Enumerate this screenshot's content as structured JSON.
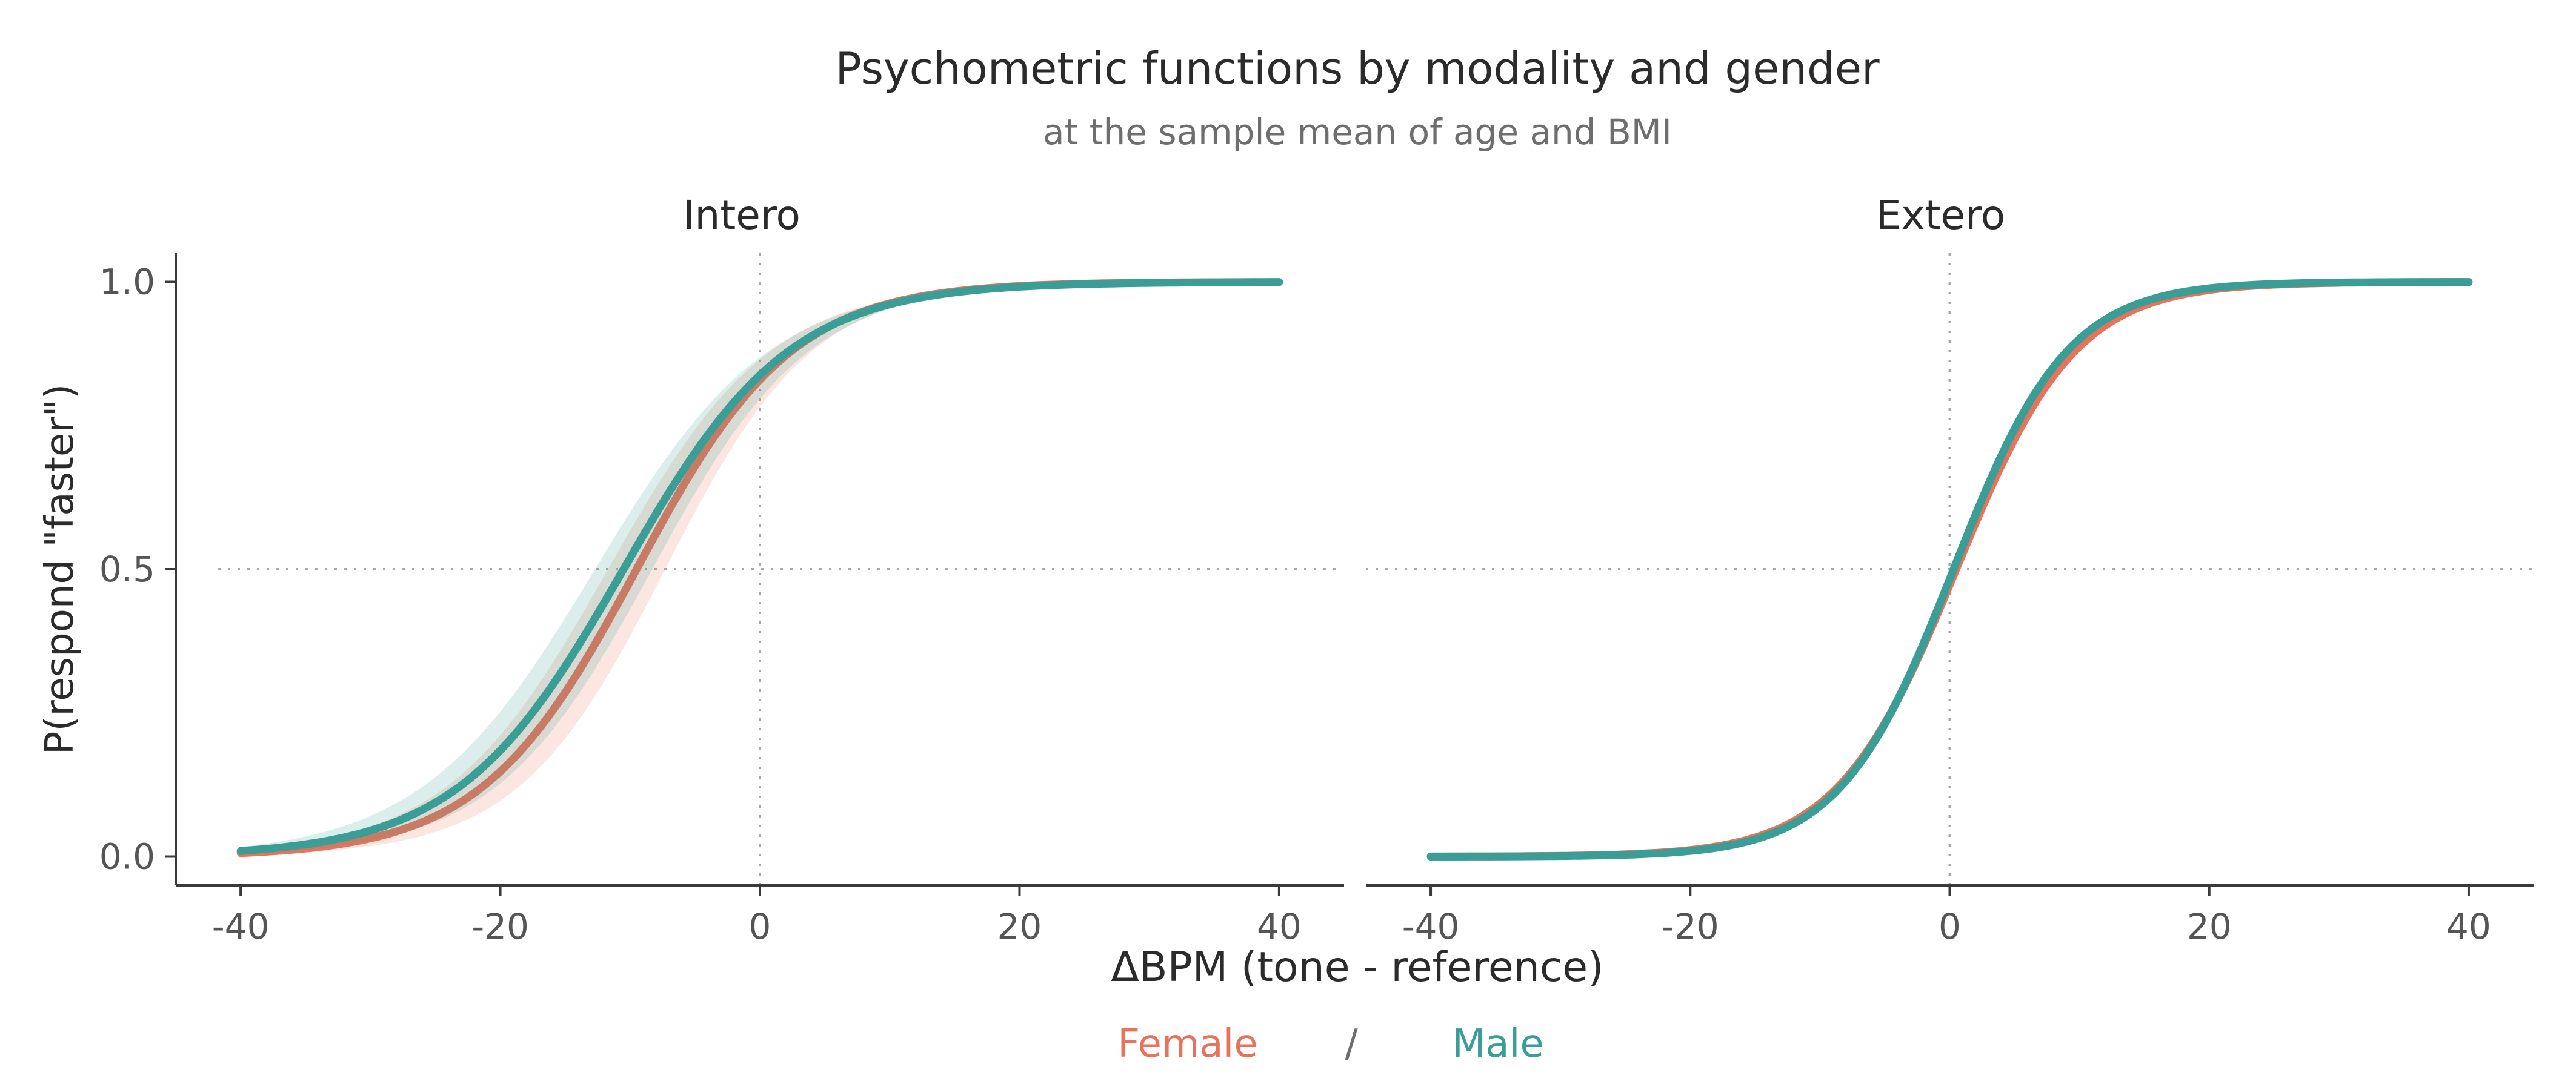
{
  "chart_data": {
    "type": "line",
    "title": "Psychometric functions by modality and gender",
    "subtitle": "at the sample mean of age and BMI",
    "xlabel": "ΔBPM (tone - reference)",
    "ylabel": "P(respond \"faster\")",
    "xlim": [
      -45,
      45
    ],
    "ylim": [
      -0.05,
      1.05
    ],
    "x_ticks": [
      "-40",
      "-20",
      "0",
      "20",
      "40"
    ],
    "y_ticks": [
      "0.0",
      "0.5",
      "1.0"
    ],
    "reference_lines": {
      "x": 0,
      "y": 0.5
    },
    "legend": {
      "placement": "bottom",
      "separator": "/"
    },
    "panels": [
      {
        "name": "Intero",
        "series": [
          {
            "name": "Female",
            "color": "#E8735A",
            "threshold": -9.5,
            "slope": 6.0,
            "x": [
              -40,
              -30,
              -20,
              -10,
              0,
              10,
              20,
              30,
              40
            ],
            "y": [
              0.006,
              0.027,
              0.14,
              0.52,
              0.83,
              0.97,
              0.995,
              0.999,
              1.0
            ]
          },
          {
            "name": "Male",
            "color": "#3A9E96",
            "threshold": -10.5,
            "slope": 6.4,
            "x": [
              -40,
              -30,
              -20,
              -10,
              0,
              10,
              20,
              30,
              40
            ],
            "y": [
              0.01,
              0.04,
              0.18,
              0.52,
              0.83,
              0.96,
              0.99,
              0.999,
              1.0
            ]
          }
        ]
      },
      {
        "name": "Extero",
        "series": [
          {
            "name": "Female",
            "color": "#E8735A",
            "threshold": 0.5,
            "slope": 4.6,
            "x": [
              -40,
              -30,
              -20,
              -10,
              0,
              10,
              20,
              30,
              40
            ],
            "y": [
              0.0,
              0.0,
              0.014,
              0.11,
              0.47,
              0.89,
              0.99,
              0.999,
              1.0
            ]
          },
          {
            "name": "Male",
            "color": "#3A9E96",
            "threshold": 0.3,
            "slope": 4.4,
            "x": [
              -40,
              -30,
              -20,
              -10,
              0,
              10,
              20,
              30,
              40
            ],
            "y": [
              0.0,
              0.0,
              0.012,
              0.1,
              0.48,
              0.9,
              0.99,
              0.999,
              1.0
            ]
          }
        ]
      }
    ]
  }
}
